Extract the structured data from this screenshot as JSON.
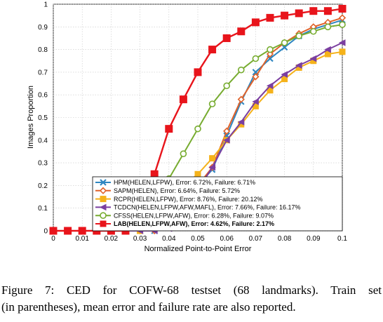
{
  "chart_data": {
    "type": "line",
    "title": "",
    "xlabel": "Normalized Point-to-Point Error",
    "ylabel": "Images Proportion",
    "xlim": [
      0,
      0.1
    ],
    "ylim": [
      0,
      1
    ],
    "x_ticks": [
      "0",
      "0.01",
      "0.02",
      "0.03",
      "0.04",
      "0.05",
      "0.06",
      "0.07",
      "0.08",
      "0.09",
      "0.1"
    ],
    "y_ticks": [
      "0",
      "0.1",
      "0.2",
      "0.3",
      "0.4",
      "0.5",
      "0.6",
      "0.7",
      "0.8",
      "0.9",
      "1"
    ],
    "grid": true,
    "legend_position": "bottom-right",
    "series": [
      {
        "name": "HPM(HELEN,LFPW), Error: 6.72%, Failure: 6.71%",
        "color": "#2e86c1",
        "marker": "x",
        "x": [
          0,
          0.005,
          0.01,
          0.015,
          0.02,
          0.025,
          0.03,
          0.035,
          0.04,
          0.045,
          0.05,
          0.055,
          0.06,
          0.065,
          0.07,
          0.075,
          0.08,
          0.085,
          0.09,
          0.095,
          0.1
        ],
        "y": [
          0,
          0,
          0,
          0,
          0,
          0,
          0,
          0,
          0.02,
          0.1,
          0.2,
          0.27,
          0.42,
          0.57,
          0.7,
          0.76,
          0.81,
          0.86,
          0.89,
          0.91,
          0.93
        ]
      },
      {
        "name": "SAPM(HELEN), Error: 6.64%, Failure: 5.72%",
        "color": "#e0622a",
        "marker": "diamond",
        "x": [
          0,
          0.005,
          0.01,
          0.015,
          0.02,
          0.025,
          0.03,
          0.035,
          0.04,
          0.045,
          0.05,
          0.055,
          0.06,
          0.065,
          0.07,
          0.075,
          0.08,
          0.085,
          0.09,
          0.095,
          0.1
        ],
        "y": [
          0,
          0,
          0,
          0,
          0,
          0,
          0,
          0,
          0.02,
          0.1,
          0.2,
          0.28,
          0.44,
          0.58,
          0.68,
          0.78,
          0.83,
          0.87,
          0.9,
          0.92,
          0.94
        ]
      },
      {
        "name": "RCPR(HELEN,LFPW), Error: 8.76%, Failure: 20.12%",
        "color": "#f5b21a",
        "marker": "square",
        "x": [
          0,
          0.005,
          0.01,
          0.015,
          0.02,
          0.025,
          0.03,
          0.035,
          0.04,
          0.045,
          0.05,
          0.055,
          0.06,
          0.065,
          0.07,
          0.075,
          0.08,
          0.085,
          0.09,
          0.095,
          0.1
        ],
        "y": [
          0,
          0,
          0,
          0,
          0,
          0,
          0,
          0.05,
          0.12,
          0.2,
          0.25,
          0.32,
          0.4,
          0.47,
          0.55,
          0.62,
          0.67,
          0.72,
          0.75,
          0.78,
          0.79
        ]
      },
      {
        "name": "TCDCN(HELEN,LFPW,AFW,MAFL), Error: 7.66%, Failure: 16.17%",
        "color": "#7b3fa0",
        "marker": "triangle-left",
        "x": [
          0,
          0.005,
          0.01,
          0.015,
          0.02,
          0.025,
          0.03,
          0.035,
          0.04,
          0.045,
          0.05,
          0.055,
          0.06,
          0.065,
          0.07,
          0.075,
          0.08,
          0.085,
          0.09,
          0.095,
          0.1
        ],
        "y": [
          0,
          0,
          0,
          0,
          0,
          0,
          0,
          0,
          0.01,
          0.08,
          0.18,
          0.28,
          0.4,
          0.48,
          0.57,
          0.64,
          0.69,
          0.73,
          0.76,
          0.8,
          0.83
        ]
      },
      {
        "name": "CFSS(HELEN,LFPW,AFW), Error: 6.28%, Failure: 9.07%",
        "color": "#77ac30",
        "marker": "circle",
        "x": [
          0,
          0.005,
          0.01,
          0.015,
          0.02,
          0.025,
          0.03,
          0.035,
          0.04,
          0.045,
          0.05,
          0.055,
          0.06,
          0.065,
          0.07,
          0.075,
          0.08,
          0.085,
          0.09,
          0.095,
          0.1
        ],
        "y": [
          0,
          0,
          0,
          0,
          0,
          0,
          0.05,
          0.14,
          0.23,
          0.34,
          0.45,
          0.56,
          0.64,
          0.71,
          0.76,
          0.8,
          0.83,
          0.86,
          0.88,
          0.9,
          0.91
        ]
      },
      {
        "name": "LAB(HELEN,LFPW,AFW), Error: 4.62%, Failure: 2.17%",
        "color": "#e8141b",
        "marker": "square",
        "x": [
          0,
          0.005,
          0.01,
          0.015,
          0.02,
          0.025,
          0.03,
          0.035,
          0.04,
          0.045,
          0.05,
          0.055,
          0.06,
          0.065,
          0.07,
          0.075,
          0.08,
          0.085,
          0.09,
          0.095,
          0.1
        ],
        "y": [
          0,
          0,
          0,
          0,
          0,
          0,
          0.05,
          0.25,
          0.45,
          0.58,
          0.7,
          0.8,
          0.85,
          0.88,
          0.92,
          0.94,
          0.95,
          0.96,
          0.97,
          0.97,
          0.98
        ]
      }
    ]
  },
  "legend_rows": [
    {
      "label": "HPM(HELEN,LFPW), Error: 6.72%, Failure: 6.71%"
    },
    {
      "label": "SAPM(HELEN), Error: 6.64%, Failure: 5.72%"
    },
    {
      "label": "RCPR(HELEN,LFPW), Error: 8.76%, Failure: 20.12%"
    },
    {
      "label": "TCDCN(HELEN,LFPW,AFW,MAFL), Error: 7.66%, Failure: 16.17%"
    },
    {
      "label": "CFSS(HELEN,LFPW,AFW), Error: 6.28%, Failure: 9.07%"
    },
    {
      "label": "LAB(HELEN,LFPW,AFW), Error: 4.62%, Failure: 2.17%"
    }
  ],
  "caption": {
    "line1": "Figure 7:   CED for COFW-68 testset (68 landmarks).  Train set",
    "line2": "(in parentheses), mean error and failure rate are also reported."
  }
}
